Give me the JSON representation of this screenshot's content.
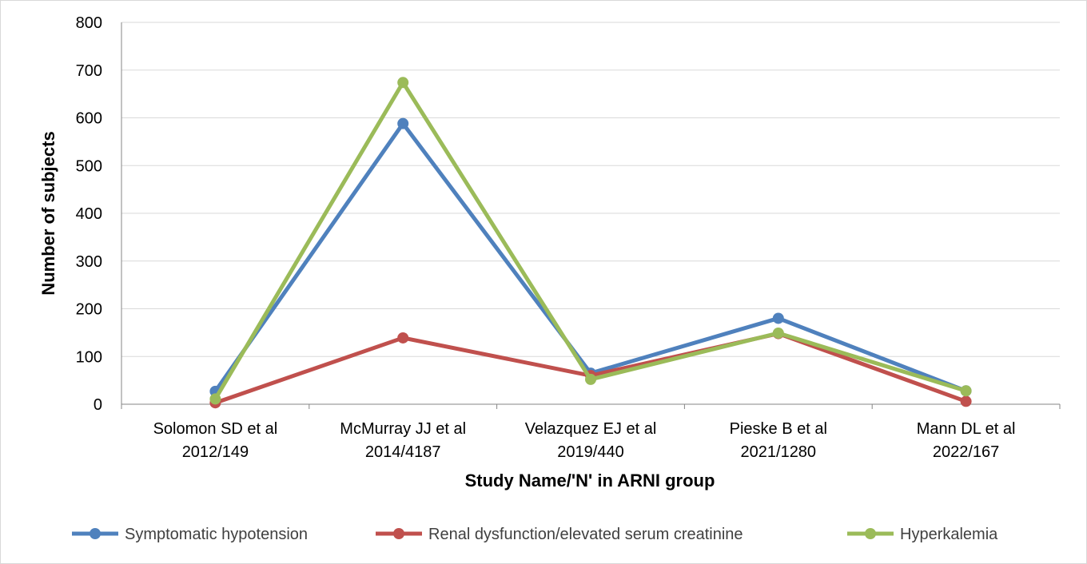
{
  "chart_data": {
    "type": "line",
    "title": "",
    "xlabel": "Study Name/'N' in ARNI group",
    "ylabel": "Number of subjects",
    "ylim": [
      0,
      800
    ],
    "yticks": [
      0,
      100,
      200,
      300,
      400,
      500,
      600,
      700,
      800
    ],
    "grid": true,
    "legend_position": "bottom",
    "categories": [
      [
        "Solomon SD et al",
        "2012/149"
      ],
      [
        "McMurray JJ et al",
        "2014/4187"
      ],
      [
        "Velazquez EJ et al",
        "2019/440"
      ],
      [
        "Pieske B et al",
        "2021/1280"
      ],
      [
        "Mann DL et al",
        "2022/167"
      ]
    ],
    "series": [
      {
        "name": "Symptomatic hypotension",
        "color": "#4F81BD",
        "values": [
          27,
          588,
          65,
          180,
          28
        ]
      },
      {
        "name": "Renal dysfunction/elevated serum creatinine",
        "color": "#C0504D",
        "values": [
          3,
          139,
          60,
          148,
          6
        ]
      },
      {
        "name": "Hyperkalemia",
        "color": "#9BBB59",
        "values": [
          11,
          674,
          52,
          149,
          28
        ]
      }
    ]
  }
}
